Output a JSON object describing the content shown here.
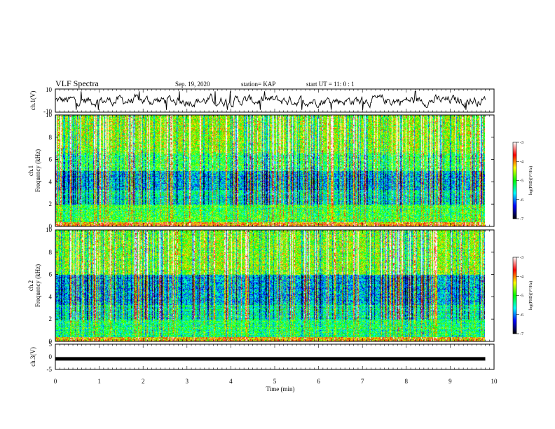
{
  "header": {
    "title": "VLF Spectra",
    "date": "Sep. 19, 2020",
    "station": "station= KAP",
    "start": "start  UT  =   11: 0  : 1"
  },
  "chart_data": [
    {
      "type": "line",
      "panel": "ch1-waveform",
      "ylabel": "ch.1(V)",
      "ylim": [
        -10,
        10
      ],
      "yticks": [
        "10",
        "-10"
      ],
      "xlim": [
        0,
        10
      ],
      "data_end_min": 9.8,
      "trace_amplitude_range": [
        -6,
        6
      ],
      "trace_color": "#000000"
    },
    {
      "type": "heatmap",
      "panel": "ch1-spectrogram",
      "ylabel_line1": "ch.1",
      "ylabel_line2": "Frequency  (kHz)",
      "ylim": [
        0,
        10
      ],
      "yticks": [
        "0",
        "2",
        "4",
        "6",
        "8",
        "10"
      ],
      "xlim": [
        0,
        10
      ],
      "data_end_min": 9.8,
      "colorbar": {
        "label": "log(PSD)(V²/Hz)",
        "range": [
          -7,
          -3
        ],
        "ticks": [
          "-3",
          "-4",
          "-5",
          "-6",
          "-7"
        ],
        "colors": [
          "#000000",
          "#0000ff",
          "#00ffff",
          "#00ff00",
          "#ffff00",
          "#ff0000",
          "#ffffff"
        ]
      }
    },
    {
      "type": "heatmap",
      "panel": "ch2-spectrogram",
      "ylabel_line1": "ch.2",
      "ylabel_line2": "Frequency  (kHz)",
      "ylim": [
        0,
        10
      ],
      "yticks": [
        "0",
        "2",
        "4",
        "6",
        "8",
        "10"
      ],
      "xlim": [
        0,
        10
      ],
      "data_end_min": 9.8,
      "colorbar": {
        "label": "log(PSD)(V²/Hz)",
        "range": [
          -7,
          -3
        ],
        "ticks": [
          "-3",
          "-4",
          "-5",
          "-6",
          "-7"
        ],
        "colors": [
          "#000000",
          "#0000ff",
          "#00ffff",
          "#00ff00",
          "#ffff00",
          "#ff0000",
          "#ffffff"
        ]
      }
    },
    {
      "type": "line",
      "panel": "ch3-waveform",
      "ylabel": "ch.3(V)",
      "ylim": [
        -5,
        5
      ],
      "yticks": [
        "5",
        "0",
        "-5"
      ],
      "xlim": [
        0,
        10
      ],
      "data_end_min": 9.8,
      "trace_level": -0.8,
      "trace_color": "#000000"
    }
  ],
  "xaxis": {
    "label": "Time  (min)",
    "ticks": [
      "0",
      "1",
      "2",
      "3",
      "4",
      "5",
      "6",
      "7",
      "8",
      "9",
      "10"
    ]
  }
}
